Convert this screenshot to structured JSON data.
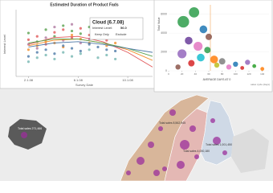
{
  "scatter_panel": {
    "title": "Estimated Duration of Product Fads",
    "x_label": "Survey Date",
    "y_label": "Interest Level",
    "xlim": [
      0,
      11
    ],
    "ylim": [
      0,
      100
    ],
    "xticks": [
      {
        "value": 1,
        "label": "2.1.08"
      },
      {
        "value": 5,
        "label": "6.1.08"
      },
      {
        "value": 9,
        "label": "10.1.08"
      }
    ],
    "x": [
      1,
      1.7,
      2.4,
      3.1,
      3.8,
      4.5,
      5.2,
      5.9,
      6.6,
      7.3,
      8
    ],
    "series": [
      {
        "color": "#e15759",
        "values": [
          55,
          60,
          48,
          66,
          70,
          58,
          72,
          62,
          68,
          54,
          60
        ]
      },
      {
        "color": "#f28e2b",
        "values": [
          40,
          46,
          52,
          50,
          44,
          62,
          56,
          50,
          58,
          46,
          50
        ]
      },
      {
        "color": "#59a14f",
        "values": [
          65,
          52,
          70,
          60,
          76,
          68,
          64,
          74,
          70,
          66,
          70
        ]
      },
      {
        "color": "#4e79a7",
        "values": [
          30,
          36,
          40,
          34,
          46,
          42,
          38,
          48,
          44,
          40,
          38
        ]
      },
      {
        "color": "#b07aa1",
        "values": [
          48,
          42,
          58,
          74,
          54,
          78,
          50,
          56,
          80,
          62,
          72
        ]
      },
      {
        "color": "#76b7b2",
        "values": [
          22,
          28,
          32,
          26,
          36,
          30,
          34,
          40,
          28,
          32,
          26
        ]
      }
    ],
    "trend_x": [
      1,
      3,
      5,
      7,
      9,
      11
    ],
    "trends": [
      {
        "color": "#e15759",
        "values": [
          48,
          58,
          60,
          52,
          36,
          14
        ]
      },
      {
        "color": "#f28e2b",
        "values": [
          46,
          54,
          56,
          50,
          40,
          24
        ]
      },
      {
        "color": "#59a14f",
        "values": [
          50,
          56,
          56,
          50,
          42,
          30
        ]
      },
      {
        "color": "#4e79a7",
        "values": [
          44,
          50,
          52,
          48,
          42,
          36
        ]
      }
    ],
    "tooltip": {
      "title": "Cloud (6.7.08)",
      "label": "Interest Level:",
      "value": "56.0",
      "keep": "Keep Only",
      "exclude": "Exclude"
    }
  },
  "bubble_panel": {
    "y_label": "Total Value",
    "x_label": "AVERAGE DAYS AT 0",
    "note": "sales cycle (days)",
    "xlim": [
      0,
      150
    ],
    "ylim": [
      0,
      7000
    ],
    "yticks": [
      0,
      2000,
      4000,
      6000
    ],
    "xticks": [
      0,
      20,
      40,
      60,
      80,
      100,
      120,
      140
    ],
    "x": [
      22,
      30,
      38,
      44,
      52,
      60,
      68,
      20,
      34,
      48,
      72,
      80,
      90,
      100,
      110,
      118,
      128,
      140,
      14,
      58
    ],
    "y": [
      5200,
      3200,
      6200,
      2600,
      4400,
      3600,
      1200,
      1800,
      800,
      1400,
      600,
      1000,
      400,
      700,
      300,
      900,
      500,
      200,
      400,
      2200
    ],
    "sizes": [
      9,
      6,
      8,
      7,
      6,
      5,
      6,
      7,
      5,
      6,
      4,
      5,
      4,
      4,
      3,
      4,
      3,
      3,
      4,
      5
    ],
    "colors": [
      "#2e9d4b",
      "#6a3d9a",
      "#2e9d4b",
      "#e377c2",
      "#1f77b4",
      "#8c564b",
      "#ff7f0e",
      "#9467bd",
      "#d62728",
      "#17becf",
      "#bcbd22",
      "#7f7f7f",
      "#e377c2",
      "#1f77b4",
      "#d62728",
      "#9467bd",
      "#2ca02c",
      "#ff7f0e",
      "#8c564b",
      "#2e9d4b"
    ]
  },
  "map": {
    "labels": [
      "Total sales 271,466",
      "Total sales 8,562,945",
      "Total sales 4,050,180",
      "Total sales 1,001,450"
    ]
  }
}
